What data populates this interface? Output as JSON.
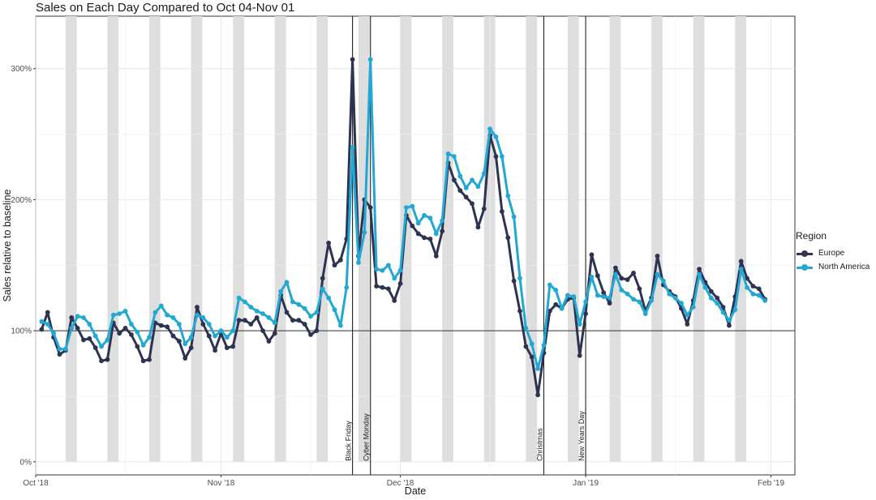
{
  "chart_data": {
    "type": "line",
    "title": "Sales on Each Day Compared to Oct 04-Nov 01",
    "xlabel": "Date",
    "ylabel": "Sales relative to baseline",
    "x_start": "2018-10-01",
    "x_end": "2019-02-05",
    "ylim": [
      -0.1,
      3.4
    ],
    "yticks": [
      0,
      1,
      2,
      3
    ],
    "ytick_labels": [
      "0%",
      "100%",
      "200%",
      "300%"
    ],
    "xticks": [
      "2018-10-01",
      "2018-11-01",
      "2018-12-01",
      "2019-01-01",
      "2019-02-01"
    ],
    "xtick_labels": [
      "Oct '18",
      "Nov '18",
      "Dec '18",
      "Jan '19",
      "Feb '19"
    ],
    "baseline": 1.0,
    "grid": true,
    "legend_position": "right",
    "legend_title": "Region",
    "weekend_bands": [
      "2018-10-06",
      "2018-10-13",
      "2018-10-20",
      "2018-10-27",
      "2018-11-03",
      "2018-11-10",
      "2018-11-17",
      "2018-11-24",
      "2018-12-01",
      "2018-12-08",
      "2018-12-15",
      "2018-12-22",
      "2018-12-29",
      "2019-01-05",
      "2019-01-12",
      "2019-01-19",
      "2019-01-26"
    ],
    "events": [
      {
        "date": "2018-11-23",
        "label": "Black Friday"
      },
      {
        "date": "2018-11-26",
        "label": "Cyber Monday"
      },
      {
        "date": "2018-12-25",
        "label": "Christmas"
      },
      {
        "date": "2019-01-01",
        "label": "New Years Day"
      }
    ],
    "series": [
      {
        "name": "Europe",
        "color": "#2e3352",
        "x": [
          "2018-10-02",
          "2018-10-03",
          "2018-10-04",
          "2018-10-05",
          "2018-10-06",
          "2018-10-07",
          "2018-10-08",
          "2018-10-09",
          "2018-10-10",
          "2018-10-11",
          "2018-10-12",
          "2018-10-13",
          "2018-10-14",
          "2018-10-15",
          "2018-10-16",
          "2018-10-17",
          "2018-10-18",
          "2018-10-19",
          "2018-10-20",
          "2018-10-21",
          "2018-10-22",
          "2018-10-23",
          "2018-10-24",
          "2018-10-25",
          "2018-10-26",
          "2018-10-27",
          "2018-10-28",
          "2018-10-29",
          "2018-10-30",
          "2018-10-31",
          "2018-11-01",
          "2018-11-02",
          "2018-11-03",
          "2018-11-04",
          "2018-11-05",
          "2018-11-06",
          "2018-11-07",
          "2018-11-08",
          "2018-11-09",
          "2018-11-10",
          "2018-11-11",
          "2018-11-12",
          "2018-11-13",
          "2018-11-14",
          "2018-11-15",
          "2018-11-16",
          "2018-11-17",
          "2018-11-18",
          "2018-11-19",
          "2018-11-20",
          "2018-11-21",
          "2018-11-22",
          "2018-11-23",
          "2018-11-24",
          "2018-11-25",
          "2018-11-26",
          "2018-11-27",
          "2018-11-28",
          "2018-11-29",
          "2018-11-30",
          "2018-12-01",
          "2018-12-02",
          "2018-12-03",
          "2018-12-04",
          "2018-12-05",
          "2018-12-06",
          "2018-12-07",
          "2018-12-08",
          "2018-12-09",
          "2018-12-10",
          "2018-12-11",
          "2018-12-12",
          "2018-12-13",
          "2018-12-14",
          "2018-12-15",
          "2018-12-16",
          "2018-12-17",
          "2018-12-18",
          "2018-12-19",
          "2018-12-20",
          "2018-12-21",
          "2018-12-22",
          "2018-12-23",
          "2018-12-24",
          "2018-12-25",
          "2018-12-26",
          "2018-12-27",
          "2018-12-28",
          "2018-12-29",
          "2018-12-30",
          "2018-12-31",
          "2019-01-01",
          "2019-01-02",
          "2019-01-03",
          "2019-01-04",
          "2019-01-05",
          "2019-01-06",
          "2019-01-07",
          "2019-01-08",
          "2019-01-09",
          "2019-01-10",
          "2019-01-11",
          "2019-01-12",
          "2019-01-13",
          "2019-01-14",
          "2019-01-15",
          "2019-01-16",
          "2019-01-17",
          "2019-01-18",
          "2019-01-19",
          "2019-01-20",
          "2019-01-21",
          "2019-01-22",
          "2019-01-23",
          "2019-01-24",
          "2019-01-25",
          "2019-01-26",
          "2019-01-27",
          "2019-01-28",
          "2019-01-29",
          "2019-01-30",
          "2019-01-31"
        ],
        "values": [
          1.01,
          1.14,
          0.95,
          0.82,
          0.85,
          1.1,
          1.02,
          0.93,
          0.94,
          0.87,
          0.77,
          0.78,
          1.06,
          0.98,
          1.02,
          0.97,
          0.88,
          0.77,
          0.78,
          1.06,
          1.04,
          1.03,
          0.96,
          0.92,
          0.79,
          0.87,
          1.18,
          1.05,
          0.96,
          0.85,
          0.98,
          0.87,
          0.88,
          1.08,
          1.08,
          1.05,
          1.1,
          1.0,
          0.92,
          0.98,
          1.27,
          1.14,
          1.08,
          1.08,
          1.05,
          0.97,
          1.0,
          1.4,
          1.67,
          1.5,
          1.54,
          1.7,
          3.07,
          1.57,
          2.0,
          1.94,
          1.34,
          1.33,
          1.32,
          1.23,
          1.36,
          1.88,
          1.8,
          1.74,
          1.71,
          1.7,
          1.57,
          1.76,
          2.28,
          2.15,
          2.07,
          2.02,
          1.97,
          1.79,
          1.93,
          2.49,
          2.33,
          1.91,
          1.71,
          1.38,
          1.15,
          0.88,
          0.8,
          0.51,
          0.83,
          1.15,
          1.2,
          1.17,
          1.24,
          1.25,
          0.81,
          1.13,
          1.58,
          1.42,
          1.29,
          1.21,
          1.48,
          1.4,
          1.39,
          1.44,
          1.32,
          1.15,
          1.25,
          1.57,
          1.35,
          1.3,
          1.26,
          1.17,
          1.05,
          1.23,
          1.47,
          1.37,
          1.3,
          1.25,
          1.18,
          1.04,
          1.26,
          1.53,
          1.4,
          1.34,
          1.32,
          1.24
        ]
      },
      {
        "name": "North America",
        "color": "#22a8d2",
        "x": [
          "2018-10-02",
          "2018-10-03",
          "2018-10-04",
          "2018-10-05",
          "2018-10-06",
          "2018-10-07",
          "2018-10-08",
          "2018-10-09",
          "2018-10-10",
          "2018-10-11",
          "2018-10-12",
          "2018-10-13",
          "2018-10-14",
          "2018-10-15",
          "2018-10-16",
          "2018-10-17",
          "2018-10-18",
          "2018-10-19",
          "2018-10-20",
          "2018-10-21",
          "2018-10-22",
          "2018-10-23",
          "2018-10-24",
          "2018-10-25",
          "2018-10-26",
          "2018-10-27",
          "2018-10-28",
          "2018-10-29",
          "2018-10-30",
          "2018-10-31",
          "2018-11-01",
          "2018-11-02",
          "2018-11-03",
          "2018-11-04",
          "2018-11-05",
          "2018-11-06",
          "2018-11-07",
          "2018-11-08",
          "2018-11-09",
          "2018-11-10",
          "2018-11-11",
          "2018-11-12",
          "2018-11-13",
          "2018-11-14",
          "2018-11-15",
          "2018-11-16",
          "2018-11-17",
          "2018-11-18",
          "2018-11-19",
          "2018-11-20",
          "2018-11-21",
          "2018-11-22",
          "2018-11-23",
          "2018-11-24",
          "2018-11-25",
          "2018-11-26",
          "2018-11-27",
          "2018-11-28",
          "2018-11-29",
          "2018-11-30",
          "2018-12-01",
          "2018-12-02",
          "2018-12-03",
          "2018-12-04",
          "2018-12-05",
          "2018-12-06",
          "2018-12-07",
          "2018-12-08",
          "2018-12-09",
          "2018-12-10",
          "2018-12-11",
          "2018-12-12",
          "2018-12-13",
          "2018-12-14",
          "2018-12-15",
          "2018-12-16",
          "2018-12-17",
          "2018-12-18",
          "2018-12-19",
          "2018-12-20",
          "2018-12-21",
          "2018-12-22",
          "2018-12-23",
          "2018-12-24",
          "2018-12-25",
          "2018-12-26",
          "2018-12-27",
          "2018-12-28",
          "2018-12-29",
          "2018-12-30",
          "2018-12-31",
          "2019-01-01",
          "2019-01-02",
          "2019-01-03",
          "2019-01-04",
          "2019-01-05",
          "2019-01-06",
          "2019-01-07",
          "2019-01-08",
          "2019-01-09",
          "2019-01-10",
          "2019-01-11",
          "2019-01-12",
          "2019-01-13",
          "2019-01-14",
          "2019-01-15",
          "2019-01-16",
          "2019-01-17",
          "2019-01-18",
          "2019-01-19",
          "2019-01-20",
          "2019-01-21",
          "2019-01-22",
          "2019-01-23",
          "2019-01-24",
          "2019-01-25",
          "2019-01-26",
          "2019-01-27",
          "2019-01-28",
          "2019-01-29",
          "2019-01-30",
          "2019-01-31"
        ],
        "values": [
          1.07,
          1.05,
          0.98,
          0.86,
          0.86,
          1.02,
          1.11,
          1.1,
          1.05,
          0.96,
          0.88,
          0.93,
          1.12,
          1.13,
          1.15,
          1.05,
          0.99,
          0.89,
          0.95,
          1.14,
          1.19,
          1.12,
          1.1,
          1.05,
          0.9,
          0.95,
          1.12,
          1.1,
          1.05,
          0.96,
          1.0,
          0.95,
          1.0,
          1.25,
          1.22,
          1.18,
          1.15,
          1.13,
          1.1,
          1.06,
          1.3,
          1.37,
          1.22,
          1.2,
          1.17,
          1.11,
          1.14,
          1.32,
          1.25,
          1.16,
          1.04,
          1.33,
          2.4,
          1.52,
          1.75,
          3.07,
          1.47,
          1.46,
          1.5,
          1.4,
          1.46,
          1.94,
          1.95,
          1.82,
          1.88,
          1.86,
          1.74,
          1.84,
          2.35,
          2.33,
          2.18,
          2.09,
          2.15,
          2.1,
          2.2,
          2.54,
          2.48,
          2.33,
          2.03,
          1.87,
          1.4,
          1.02,
          0.9,
          0.71,
          0.89,
          1.35,
          1.31,
          1.17,
          1.27,
          1.26,
          1.05,
          1.22,
          1.41,
          1.27,
          1.26,
          1.25,
          1.43,
          1.31,
          1.28,
          1.24,
          1.22,
          1.13,
          1.23,
          1.43,
          1.38,
          1.28,
          1.25,
          1.21,
          1.12,
          1.18,
          1.43,
          1.33,
          1.25,
          1.21,
          1.14,
          1.08,
          1.16,
          1.47,
          1.33,
          1.28,
          1.27,
          1.23
        ]
      }
    ]
  }
}
